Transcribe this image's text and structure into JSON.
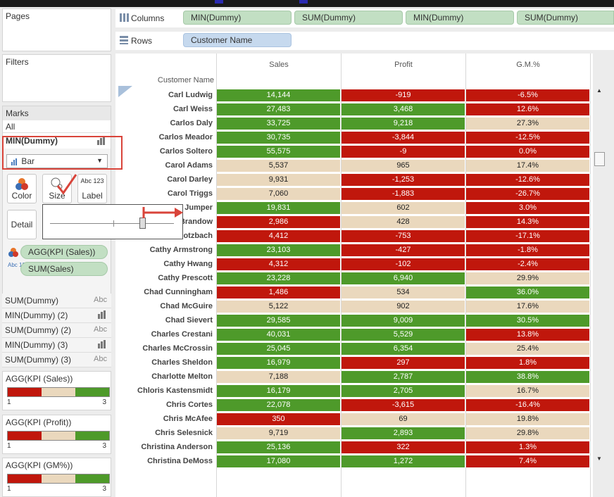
{
  "colors": {
    "green": "#4e9a2a",
    "red": "#c0170c",
    "tan": "#ead8bd",
    "pill_green": "#c2dfc3",
    "pill_blue": "#c6d9ee",
    "annotation_red": "#d9443a"
  },
  "panels": {
    "pages": "Pages",
    "filters": "Filters",
    "marks": "Marks",
    "all": "All",
    "mark_layer": "MIN(Dummy)",
    "mark_type": "Bar",
    "buttons": {
      "color": "Color",
      "size": "Size",
      "label": "Label",
      "detail": "Detail"
    },
    "label_glyph": "Abc 123",
    "encodings": [
      {
        "text": "AGG(KPI (Sales))",
        "icon": "color-dots-icon"
      },
      {
        "text": "SUM(Sales)",
        "icon": "abc-123-icon"
      }
    ],
    "layers": [
      {
        "text": "SUM(Dummy)",
        "icon": "Abc"
      },
      {
        "text": "MIN(Dummy) (2)",
        "icon": "bar-chart-icon"
      },
      {
        "text": "SUM(Dummy) (2)",
        "icon": "Abc"
      },
      {
        "text": "MIN(Dummy) (3)",
        "icon": "bar-chart-icon"
      },
      {
        "text": "SUM(Dummy) (3)",
        "icon": "Abc"
      }
    ],
    "legends": [
      {
        "title": "AGG(KPI (Sales))",
        "min": "1",
        "max": "3"
      },
      {
        "title": "AGG(KPI (Profit))",
        "min": "1",
        "max": "3"
      },
      {
        "title": "AGG(KPI (GM%))",
        "min": "1",
        "max": "3"
      }
    ]
  },
  "shelves": {
    "columns_label": "Columns",
    "columns": [
      "MIN(Dummy)",
      "SUM(Dummy)",
      "MIN(Dummy)",
      "SUM(Dummy)"
    ],
    "rows_label": "Rows",
    "rows": [
      "Customer Name"
    ]
  },
  "view": {
    "row_header": "Customer Name",
    "columns": [
      "Sales",
      "Profit",
      "G.M.%"
    ],
    "rows": [
      {
        "name": "Carl Ludwig",
        "sales": "14,144",
        "sc": "green",
        "profit": "-919",
        "pc": "red",
        "gm": "-6.5%",
        "gc": "red"
      },
      {
        "name": "Carl Weiss",
        "sales": "27,483",
        "sc": "green",
        "profit": "3,468",
        "pc": "green",
        "gm": "12.6%",
        "gc": "red"
      },
      {
        "name": "Carlos Daly",
        "sales": "33,725",
        "sc": "green",
        "profit": "9,218",
        "pc": "green",
        "gm": "27.3%",
        "gc": "tan"
      },
      {
        "name": "Carlos Meador",
        "sales": "30,735",
        "sc": "green",
        "profit": "-3,844",
        "pc": "red",
        "gm": "-12.5%",
        "gc": "red"
      },
      {
        "name": "Carlos Soltero",
        "sales": "55,575",
        "sc": "green",
        "profit": "-9",
        "pc": "red",
        "gm": "0.0%",
        "gc": "red"
      },
      {
        "name": "Carol Adams",
        "sales": "5,537",
        "sc": "tan",
        "profit": "965",
        "pc": "tan",
        "gm": "17.4%",
        "gc": "tan"
      },
      {
        "name": "Carol Darley",
        "sales": "9,931",
        "sc": "tan",
        "profit": "-1,253",
        "pc": "red",
        "gm": "-12.6%",
        "gc": "red"
      },
      {
        "name": "Carol Triggs",
        "sales": "7,060",
        "sc": "tan",
        "profit": "-1,883",
        "pc": "red",
        "gm": "-26.7%",
        "gc": "red"
      },
      {
        "name": "Jumper",
        "sales": "19,831",
        "sc": "green",
        "profit": "602",
        "pc": "tan",
        "gm": "3.0%",
        "gc": "red"
      },
      {
        "name": "Brandow",
        "sales": "2,986",
        "sc": "red",
        "profit": "428",
        "pc": "tan",
        "gm": "14.3%",
        "gc": "red"
      },
      {
        "name": "otzbach",
        "sales": "4,412",
        "sc": "red",
        "profit": "-753",
        "pc": "red",
        "gm": "-17.1%",
        "gc": "red"
      },
      {
        "name": "Cathy Armstrong",
        "sales": "23,103",
        "sc": "green",
        "profit": "-427",
        "pc": "red",
        "gm": "-1.8%",
        "gc": "red"
      },
      {
        "name": "Cathy Hwang",
        "sales": "4,312",
        "sc": "red",
        "profit": "-102",
        "pc": "red",
        "gm": "-2.4%",
        "gc": "red"
      },
      {
        "name": "Cathy Prescott",
        "sales": "23,228",
        "sc": "green",
        "profit": "6,940",
        "pc": "green",
        "gm": "29.9%",
        "gc": "tan"
      },
      {
        "name": "Chad Cunningham",
        "sales": "1,486",
        "sc": "red",
        "profit": "534",
        "pc": "tan",
        "gm": "36.0%",
        "gc": "green"
      },
      {
        "name": "Chad McGuire",
        "sales": "5,122",
        "sc": "tan",
        "profit": "902",
        "pc": "tan",
        "gm": "17.6%",
        "gc": "tan"
      },
      {
        "name": "Chad Sievert",
        "sales": "29,585",
        "sc": "green",
        "profit": "9,009",
        "pc": "green",
        "gm": "30.5%",
        "gc": "green"
      },
      {
        "name": "Charles Crestani",
        "sales": "40,031",
        "sc": "green",
        "profit": "5,529",
        "pc": "green",
        "gm": "13.8%",
        "gc": "red"
      },
      {
        "name": "Charles McCrossin",
        "sales": "25,045",
        "sc": "green",
        "profit": "6,354",
        "pc": "green",
        "gm": "25.4%",
        "gc": "tan"
      },
      {
        "name": "Charles Sheldon",
        "sales": "16,979",
        "sc": "green",
        "profit": "297",
        "pc": "red",
        "gm": "1.8%",
        "gc": "red"
      },
      {
        "name": "Charlotte Melton",
        "sales": "7,188",
        "sc": "tan",
        "profit": "2,787",
        "pc": "green",
        "gm": "38.8%",
        "gc": "green"
      },
      {
        "name": "Chloris Kastensmidt",
        "sales": "16,179",
        "sc": "green",
        "profit": "2,705",
        "pc": "green",
        "gm": "16.7%",
        "gc": "tan"
      },
      {
        "name": "Chris Cortes",
        "sales": "22,078",
        "sc": "green",
        "profit": "-3,615",
        "pc": "red",
        "gm": "-16.4%",
        "gc": "red"
      },
      {
        "name": "Chris McAfee",
        "sales": "350",
        "sc": "red",
        "profit": "69",
        "pc": "tan",
        "gm": "19.8%",
        "gc": "tan"
      },
      {
        "name": "Chris Selesnick",
        "sales": "9,719",
        "sc": "tan",
        "profit": "2,893",
        "pc": "green",
        "gm": "29.8%",
        "gc": "tan"
      },
      {
        "name": "Christina Anderson",
        "sales": "25,136",
        "sc": "green",
        "profit": "322",
        "pc": "red",
        "gm": "1.3%",
        "gc": "red"
      },
      {
        "name": "Christina DeMoss",
        "sales": "17,080",
        "sc": "green",
        "profit": "1,272",
        "pc": "green",
        "gm": "7.4%",
        "gc": "red"
      }
    ]
  }
}
